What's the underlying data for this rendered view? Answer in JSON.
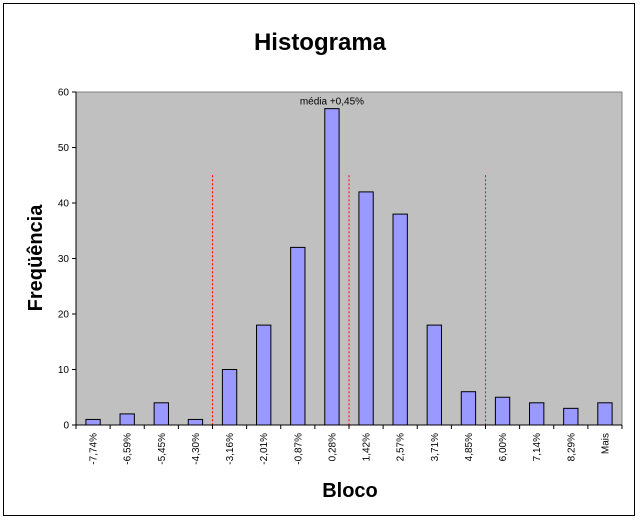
{
  "chart_data": {
    "type": "bar",
    "title": "Histograma",
    "xlabel": "Bloco",
    "ylabel": "Freqüência",
    "categories": [
      "-7,74%",
      "-6,59%",
      "-5,45%",
      "-4,30%",
      "-3,16%",
      "-2,01%",
      "-0,87%",
      "0,28%",
      "1,42%",
      "2,57%",
      "3,71%",
      "4,85%",
      "6,00%",
      "7,14%",
      "8,29%",
      "Mais"
    ],
    "values": [
      1,
      2,
      4,
      1,
      10,
      18,
      32,
      57,
      42,
      38,
      18,
      6,
      5,
      4,
      3,
      4
    ],
    "ylim": [
      0,
      60
    ],
    "yticks": [
      0,
      10,
      20,
      30,
      40,
      50,
      60
    ],
    "grid": false,
    "legend": "none",
    "annotation": "média +0,45%",
    "reference_lines_between_categories": [
      3.5,
      7.5,
      11.5
    ],
    "colors": {
      "plot_background": "#c0c0c0",
      "bar_fill": "#9999ff",
      "bar_stroke": "#000000",
      "reference_line": "#ff0000"
    }
  }
}
